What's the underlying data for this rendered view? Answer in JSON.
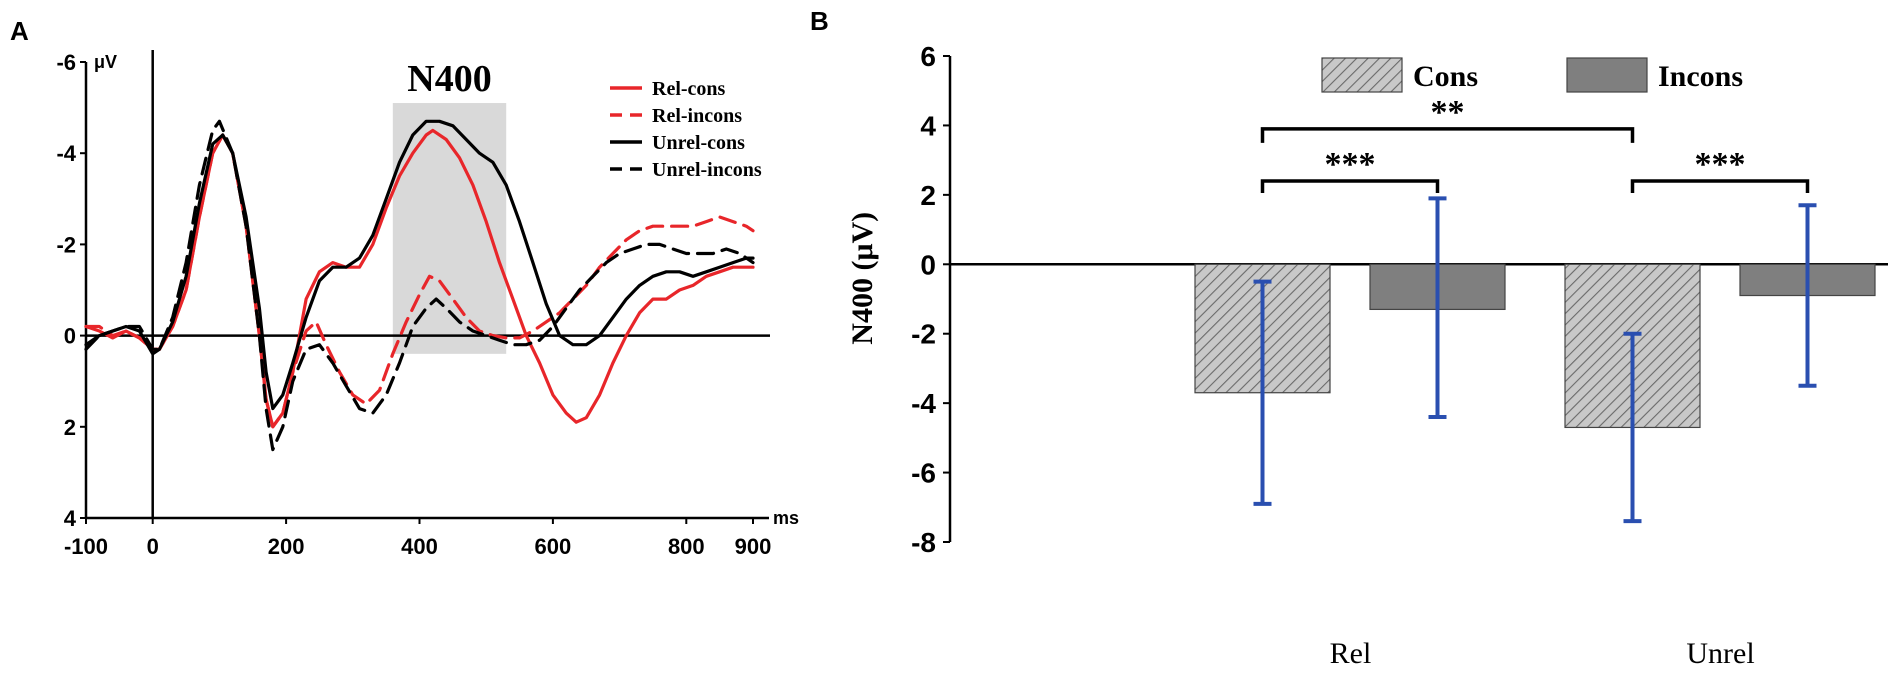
{
  "panels": {
    "a_label": "A",
    "b_label": "B"
  },
  "colors": {
    "red": "#e8262a",
    "black": "#000000",
    "window": "#d9d9d9",
    "cons_fill": "#c8c8c8",
    "incons_fill": "#7f7f7f",
    "errorbar": "#2a4fb0"
  },
  "chart_data": [
    {
      "type": "line",
      "panel": "A",
      "title": "N400",
      "ylabel": "μV",
      "xlabel": "ms",
      "xlim": [
        -100,
        900
      ],
      "ylim": [
        4,
        -6
      ],
      "y_inverted": true,
      "x_ticks": [
        -100,
        0,
        200,
        400,
        600,
        800,
        900
      ],
      "x_tick_labels": [
        "-100",
        "0",
        "200",
        "400",
        "600",
        "800",
        "900"
      ],
      "y_ticks": [
        -6,
        -4,
        -2,
        0,
        2,
        4
      ],
      "y_tick_labels": [
        "-6",
        "-4",
        "-2",
        "0",
        "2",
        "4"
      ],
      "highlight_window": {
        "label": "N400",
        "x_range": [
          360,
          530
        ],
        "y_range": [
          0.4,
          -5.1
        ]
      },
      "series": [
        {
          "name": "Rel-cons",
          "color": "#e8262a",
          "dash": "solid",
          "points": [
            [
              -100,
              -0.2
            ],
            [
              -80,
              -0.1
            ],
            [
              -60,
              0.05
            ],
            [
              -40,
              -0.1
            ],
            [
              -20,
              0.05
            ],
            [
              0,
              0.3
            ],
            [
              10,
              0.3
            ],
            [
              30,
              -0.2
            ],
            [
              50,
              -1.0
            ],
            [
              70,
              -2.6
            ],
            [
              90,
              -4.0
            ],
            [
              105,
              -4.4
            ],
            [
              120,
              -4.0
            ],
            [
              140,
              -2.4
            ],
            [
              160,
              0.0
            ],
            [
              170,
              1.4
            ],
            [
              180,
              2.0
            ],
            [
              195,
              1.7
            ],
            [
              210,
              0.8
            ],
            [
              230,
              -0.8
            ],
            [
              250,
              -1.4
            ],
            [
              270,
              -1.6
            ],
            [
              290,
              -1.5
            ],
            [
              310,
              -1.5
            ],
            [
              330,
              -2.0
            ],
            [
              350,
              -2.8
            ],
            [
              370,
              -3.5
            ],
            [
              390,
              -4.0
            ],
            [
              410,
              -4.4
            ],
            [
              420,
              -4.5
            ],
            [
              440,
              -4.3
            ],
            [
              460,
              -3.9
            ],
            [
              480,
              -3.3
            ],
            [
              500,
              -2.5
            ],
            [
              520,
              -1.6
            ],
            [
              540,
              -0.8
            ],
            [
              560,
              0.0
            ],
            [
              580,
              0.6
            ],
            [
              600,
              1.3
            ],
            [
              620,
              1.7
            ],
            [
              635,
              1.9
            ],
            [
              650,
              1.8
            ],
            [
              670,
              1.3
            ],
            [
              690,
              0.6
            ],
            [
              710,
              0.0
            ],
            [
              730,
              -0.5
            ],
            [
              750,
              -0.8
            ],
            [
              770,
              -0.8
            ],
            [
              790,
              -1.0
            ],
            [
              810,
              -1.1
            ],
            [
              830,
              -1.3
            ],
            [
              850,
              -1.4
            ],
            [
              870,
              -1.5
            ],
            [
              890,
              -1.5
            ],
            [
              900,
              -1.5
            ]
          ]
        },
        {
          "name": "Rel-incons",
          "color": "#e8262a",
          "dash": "dashed",
          "points": [
            [
              -100,
              -0.2
            ],
            [
              -80,
              -0.2
            ],
            [
              -60,
              0.0
            ],
            [
              -40,
              -0.1
            ],
            [
              -20,
              0.05
            ],
            [
              0,
              0.3
            ],
            [
              10,
              0.3
            ],
            [
              30,
              -0.2
            ],
            [
              50,
              -1.0
            ],
            [
              70,
              -2.6
            ],
            [
              90,
              -4.0
            ],
            [
              105,
              -4.4
            ],
            [
              120,
              -4.0
            ],
            [
              140,
              -2.4
            ],
            [
              160,
              0.0
            ],
            [
              170,
              1.4
            ],
            [
              180,
              2.0
            ],
            [
              195,
              1.7
            ],
            [
              210,
              0.8
            ],
            [
              230,
              -0.1
            ],
            [
              245,
              -0.3
            ],
            [
              260,
              0.2
            ],
            [
              280,
              0.8
            ],
            [
              300,
              1.3
            ],
            [
              320,
              1.5
            ],
            [
              340,
              1.2
            ],
            [
              360,
              0.4
            ],
            [
              380,
              -0.3
            ],
            [
              400,
              -0.9
            ],
            [
              415,
              -1.3
            ],
            [
              430,
              -1.2
            ],
            [
              450,
              -0.8
            ],
            [
              470,
              -0.4
            ],
            [
              490,
              -0.1
            ],
            [
              510,
              0.0
            ],
            [
              530,
              0.05
            ],
            [
              550,
              0.05
            ],
            [
              570,
              -0.1
            ],
            [
              590,
              -0.3
            ],
            [
              610,
              -0.5
            ],
            [
              630,
              -0.8
            ],
            [
              650,
              -1.1
            ],
            [
              670,
              -1.5
            ],
            [
              690,
              -1.8
            ],
            [
              710,
              -2.1
            ],
            [
              730,
              -2.3
            ],
            [
              750,
              -2.4
            ],
            [
              770,
              -2.4
            ],
            [
              790,
              -2.4
            ],
            [
              810,
              -2.4
            ],
            [
              830,
              -2.5
            ],
            [
              850,
              -2.6
            ],
            [
              870,
              -2.5
            ],
            [
              890,
              -2.4
            ],
            [
              900,
              -2.3
            ]
          ]
        },
        {
          "name": "Unrel-cons",
          "color": "#000000",
          "dash": "solid",
          "points": [
            [
              -100,
              0.2
            ],
            [
              -80,
              0.0
            ],
            [
              -60,
              -0.1
            ],
            [
              -40,
              -0.2
            ],
            [
              -20,
              -0.1
            ],
            [
              0,
              0.4
            ],
            [
              10,
              0.3
            ],
            [
              30,
              -0.3
            ],
            [
              50,
              -1.3
            ],
            [
              70,
              -2.9
            ],
            [
              90,
              -4.2
            ],
            [
              105,
              -4.4
            ],
            [
              120,
              -4.0
            ],
            [
              140,
              -2.6
            ],
            [
              160,
              -0.6
            ],
            [
              170,
              0.8
            ],
            [
              180,
              1.6
            ],
            [
              195,
              1.3
            ],
            [
              210,
              0.6
            ],
            [
              230,
              -0.4
            ],
            [
              250,
              -1.2
            ],
            [
              270,
              -1.5
            ],
            [
              290,
              -1.5
            ],
            [
              310,
              -1.7
            ],
            [
              330,
              -2.2
            ],
            [
              350,
              -3.0
            ],
            [
              370,
              -3.8
            ],
            [
              390,
              -4.4
            ],
            [
              410,
              -4.7
            ],
            [
              430,
              -4.7
            ],
            [
              450,
              -4.6
            ],
            [
              470,
              -4.3
            ],
            [
              490,
              -4.0
            ],
            [
              510,
              -3.8
            ],
            [
              530,
              -3.3
            ],
            [
              550,
              -2.5
            ],
            [
              570,
              -1.6
            ],
            [
              590,
              -0.7
            ],
            [
              610,
              0.0
            ],
            [
              630,
              0.2
            ],
            [
              650,
              0.2
            ],
            [
              670,
              0.0
            ],
            [
              690,
              -0.4
            ],
            [
              710,
              -0.8
            ],
            [
              730,
              -1.1
            ],
            [
              750,
              -1.3
            ],
            [
              770,
              -1.4
            ],
            [
              790,
              -1.4
            ],
            [
              810,
              -1.3
            ],
            [
              830,
              -1.4
            ],
            [
              850,
              -1.5
            ],
            [
              870,
              -1.6
            ],
            [
              890,
              -1.7
            ],
            [
              900,
              -1.7
            ]
          ]
        },
        {
          "name": "Unrel-incons",
          "color": "#000000",
          "dash": "dashed",
          "points": [
            [
              -100,
              0.3
            ],
            [
              -80,
              0.0
            ],
            [
              -60,
              -0.1
            ],
            [
              -40,
              -0.2
            ],
            [
              -20,
              -0.2
            ],
            [
              0,
              0.3
            ],
            [
              10,
              0.3
            ],
            [
              30,
              -0.4
            ],
            [
              50,
              -1.6
            ],
            [
              70,
              -3.3
            ],
            [
              90,
              -4.5
            ],
            [
              100,
              -4.7
            ],
            [
              120,
              -4.0
            ],
            [
              140,
              -2.4
            ],
            [
              160,
              0.0
            ],
            [
              170,
              1.6
            ],
            [
              180,
              2.5
            ],
            [
              195,
              2.0
            ],
            [
              210,
              1.0
            ],
            [
              230,
              0.3
            ],
            [
              250,
              0.2
            ],
            [
              270,
              0.6
            ],
            [
              290,
              1.1
            ],
            [
              310,
              1.6
            ],
            [
              330,
              1.7
            ],
            [
              350,
              1.3
            ],
            [
              370,
              0.6
            ],
            [
              390,
              -0.2
            ],
            [
              410,
              -0.6
            ],
            [
              425,
              -0.8
            ],
            [
              440,
              -0.6
            ],
            [
              460,
              -0.3
            ],
            [
              480,
              -0.1
            ],
            [
              500,
              0.0
            ],
            [
              520,
              0.1
            ],
            [
              540,
              0.2
            ],
            [
              560,
              0.2
            ],
            [
              580,
              0.1
            ],
            [
              600,
              -0.2
            ],
            [
              620,
              -0.6
            ],
            [
              640,
              -1.0
            ],
            [
              660,
              -1.3
            ],
            [
              680,
              -1.6
            ],
            [
              700,
              -1.8
            ],
            [
              720,
              -1.9
            ],
            [
              740,
              -2.0
            ],
            [
              760,
              -2.0
            ],
            [
              780,
              -1.9
            ],
            [
              800,
              -1.8
            ],
            [
              820,
              -1.8
            ],
            [
              840,
              -1.8
            ],
            [
              860,
              -1.9
            ],
            [
              880,
              -1.8
            ],
            [
              900,
              -1.6
            ]
          ]
        }
      ]
    },
    {
      "type": "bar",
      "panel": "B",
      "ylabel": "N400 (μV)",
      "xlabel": "",
      "ylim": [
        -8,
        6
      ],
      "y_ticks": [
        -8,
        -6,
        -4,
        -2,
        0,
        2,
        4,
        6
      ],
      "y_tick_labels": [
        "-8",
        "-6",
        "-4",
        "-2",
        "0",
        "2",
        "4",
        "6"
      ],
      "categories": [
        "Rel",
        "Unrel"
      ],
      "series": [
        {
          "name": "Cons",
          "pattern": "hatched",
          "values": [
            -3.7,
            -4.7
          ],
          "err_low": [
            -6.9,
            -7.4
          ],
          "err_high": [
            -0.5,
            -2.0
          ]
        },
        {
          "name": "Incons",
          "pattern": "solid",
          "values": [
            -1.3,
            -0.9
          ],
          "err_low": [
            -4.4,
            -3.5
          ],
          "err_high": [
            1.9,
            1.7
          ]
        }
      ],
      "significance": [
        {
          "label": "**",
          "between": [
            "Rel Cons",
            "Unrel Cons"
          ]
        },
        {
          "label": "***",
          "between": [
            "Rel Cons",
            "Rel Incons"
          ]
        },
        {
          "label": "***",
          "between": [
            "Unrel Cons",
            "Unrel Incons"
          ]
        }
      ]
    }
  ]
}
